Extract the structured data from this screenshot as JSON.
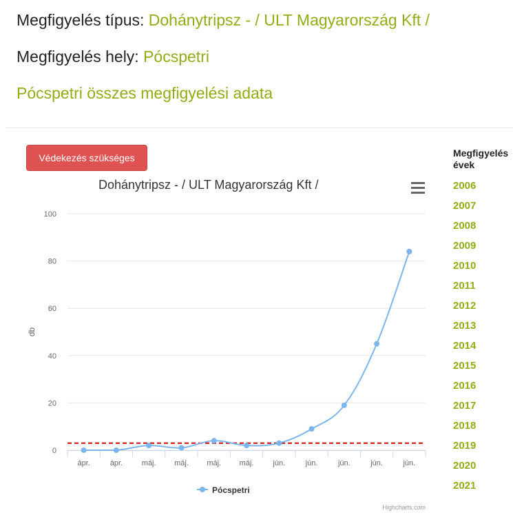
{
  "header": {
    "type_label": "Megfigyelés típus:",
    "type_value": "Dohánytripsz - / ULT Magyarország Kft /",
    "place_label": "Megfigyelés hely:",
    "place_value": "Pócspetri",
    "subtitle": "Pócspetri összes megfigyelési adata"
  },
  "alert_button": "Védekezés szükséges",
  "years": {
    "heading_line1": "Megfigyelés",
    "heading_line2": "évek",
    "items": [
      "2006",
      "2007",
      "2008",
      "2009",
      "2010",
      "2011",
      "2012",
      "2013",
      "2014",
      "2015",
      "2016",
      "2017",
      "2018",
      "2019",
      "2020",
      "2021"
    ]
  },
  "chart_menu_icon": "hamburger-menu-icon",
  "credit": "Highcharts.com",
  "colors": {
    "accent": "#8fad15",
    "series": "#7cb5ec",
    "threshold": "#cc0000",
    "alert": "#de5252"
  },
  "chart_data": {
    "type": "line",
    "title": "Dohánytripsz - / ULT Magyarország Kft /",
    "ylabel": "db",
    "xlabel": "",
    "categories": [
      "ápr.",
      "ápr.",
      "máj.",
      "máj.",
      "máj.",
      "máj.",
      "jún.",
      "jún.",
      "jún.",
      "jún.",
      "jún."
    ],
    "series": [
      {
        "name": "Pócspetri",
        "values": [
          0,
          0,
          2,
          1,
          4,
          2,
          3,
          9,
          19,
          45,
          84
        ]
      }
    ],
    "threshold": 3,
    "ylim": [
      0,
      100
    ],
    "yticks": [
      0,
      20,
      40,
      60,
      80,
      100
    ],
    "grid": true,
    "legend": "bottom-center"
  }
}
